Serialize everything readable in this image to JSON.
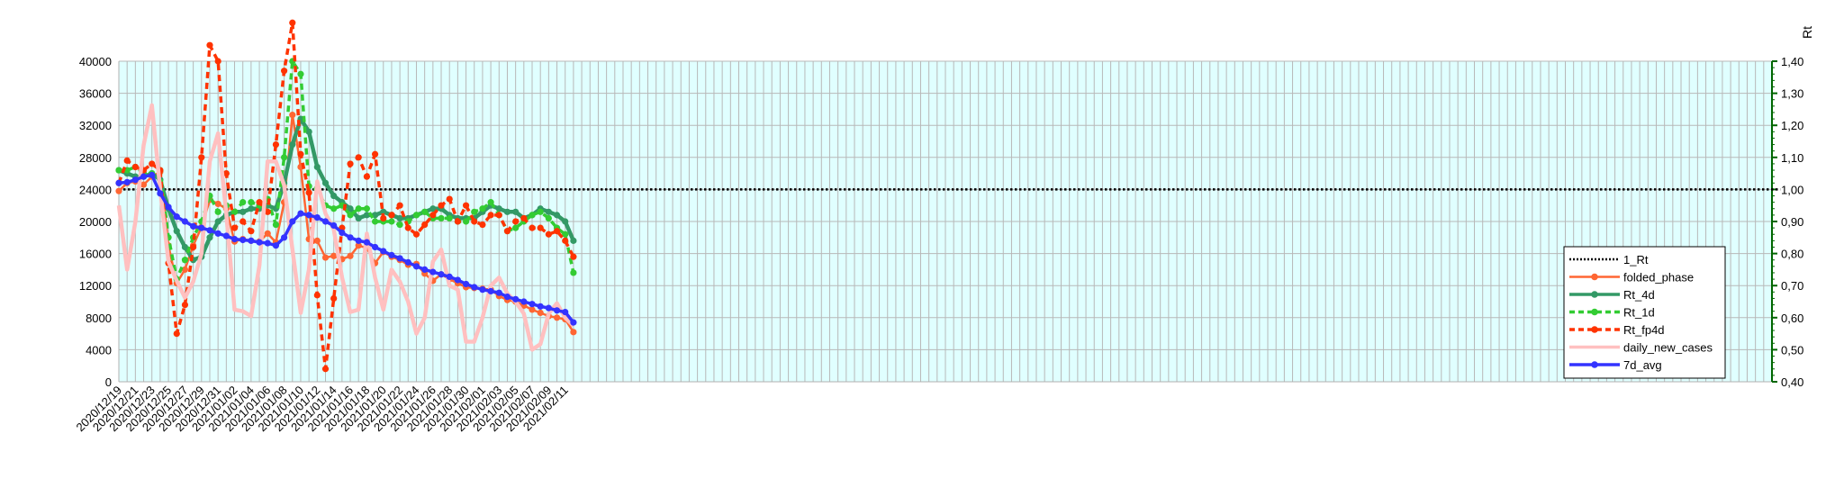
{
  "chart_data": {
    "type": "line",
    "title": "",
    "xlabel": "",
    "ylabel_left": "",
    "ylabel_right": "Rt",
    "ylim_left": [
      0,
      40000
    ],
    "ylim_right": [
      0.4,
      1.4
    ],
    "yticks_left": [
      "0",
      "4000",
      "8000",
      "12000",
      "16000",
      "20000",
      "24000",
      "28000",
      "32000",
      "36000",
      "40000"
    ],
    "yticks_right": [
      "0,40",
      "0,50",
      "0,60",
      "0,70",
      "0,80",
      "0,90",
      "1,00",
      "1,10",
      "1,20",
      "1,30",
      "1,40"
    ],
    "x_start": "2020/12/19",
    "x_days_total": 200,
    "x_tick_labels": [
      "2020/12/19",
      "2020/12/21",
      "2020/12/23",
      "2020/12/25",
      "2020/12/27",
      "2020/12/29",
      "2020/12/31",
      "2021/01/02",
      "2021/01/04",
      "2021/01/06",
      "2021/01/08",
      "2021/01/10",
      "2021/01/12",
      "2021/01/14",
      "2021/01/16",
      "2021/01/18",
      "2021/01/20",
      "2021/01/22",
      "2021/01/24",
      "2021/01/26",
      "2021/01/28",
      "2021/01/30",
      "2021/02/01",
      "2021/02/03",
      "2021/02/05",
      "2021/02/07",
      "2021/02/09",
      "2021/02/11"
    ],
    "grid": true,
    "plot_background": "#e0ffff",
    "legend_position": "right",
    "series": [
      {
        "name": "1_Rt",
        "axis": "right",
        "color": "#000000",
        "style": "dotted",
        "marker": "none",
        "width": 2.5,
        "values": [
          1.0,
          1.0,
          1.0,
          1.0,
          1.0,
          1.0,
          1.0,
          1.0,
          1.0,
          1.0,
          1.0,
          1.0,
          1.0,
          1.0,
          1.0,
          1.0,
          1.0,
          1.0,
          1.0,
          1.0,
          1.0,
          1.0,
          1.0,
          1.0,
          1.0,
          1.0,
          1.0,
          1.0,
          1.0,
          1.0,
          1.0,
          1.0,
          1.0,
          1.0,
          1.0,
          1.0,
          1.0,
          1.0,
          1.0,
          1.0,
          1.0,
          1.0,
          1.0,
          1.0,
          1.0,
          1.0,
          1.0,
          1.0,
          1.0,
          1.0,
          1.0,
          1.0,
          1.0,
          1.0,
          1.0,
          1.0,
          1.0,
          1.0,
          1.0,
          1.0,
          1.0,
          1.0,
          1.0,
          1.0,
          1.0,
          1.0,
          1.0,
          1.0,
          1.0,
          1.0,
          1.0,
          1.0,
          1.0,
          1.0,
          1.0,
          1.0,
          1.0,
          1.0,
          1.0,
          1.0,
          1.0,
          1.0,
          1.0,
          1.0,
          1.0,
          1.0,
          1.0,
          1.0,
          1.0,
          1.0,
          1.0,
          1.0,
          1.0,
          1.0,
          1.0,
          1.0,
          1.0,
          1.0,
          1.0,
          1.0,
          1.0,
          1.0,
          1.0,
          1.0,
          1.0,
          1.0,
          1.0,
          1.0,
          1.0,
          1.0,
          1.0,
          1.0,
          1.0,
          1.0,
          1.0,
          1.0,
          1.0,
          1.0,
          1.0,
          1.0,
          1.0,
          1.0,
          1.0,
          1.0,
          1.0,
          1.0,
          1.0,
          1.0,
          1.0,
          1.0,
          1.0,
          1.0,
          1.0,
          1.0,
          1.0,
          1.0,
          1.0,
          1.0,
          1.0,
          1.0,
          1.0,
          1.0,
          1.0,
          1.0,
          1.0,
          1.0,
          1.0,
          1.0,
          1.0,
          1.0,
          1.0,
          1.0,
          1.0,
          1.0,
          1.0,
          1.0,
          1.0,
          1.0,
          1.0,
          1.0,
          1.0,
          1.0,
          1.0,
          1.0,
          1.0,
          1.0,
          1.0,
          1.0,
          1.0,
          1.0,
          1.0,
          1.0,
          1.0,
          1.0,
          1.0,
          1.0,
          1.0,
          1.0,
          1.0,
          1.0,
          1.0,
          1.0,
          1.0,
          1.0,
          1.0,
          1.0,
          1.0,
          1.0,
          1.0,
          1.0,
          1.0,
          1.0,
          1.0,
          1.0,
          1.0,
          1.0,
          1.0,
          1.0,
          1.0,
          1.0,
          1.0,
          1.0
        ]
      },
      {
        "name": "folded_phase",
        "axis": "left",
        "color": "#ff6633",
        "style": "solid",
        "marker": "circle",
        "width": 2.5,
        "values": [
          23800,
          24800,
          25000,
          24600,
          25600,
          26200,
          17000,
          12300,
          14000,
          17000,
          19300,
          22700,
          22200,
          21600,
          17500,
          17800,
          17600,
          17500,
          18500,
          17400,
          22400,
          33300,
          26800,
          17800,
          17600,
          15500,
          15700,
          15300,
          15700,
          17000,
          16700,
          14800,
          16200,
          15600,
          15200,
          14600,
          14700,
          13500,
          12600,
          13400,
          12800,
          12300,
          11800,
          11700,
          11600,
          11500,
          10700,
          10200,
          10000,
          9500,
          9000,
          8600,
          8200,
          8000,
          7800,
          6200
        ]
      },
      {
        "name": "Rt_4d",
        "axis": "right",
        "color": "#339966",
        "style": "solid",
        "marker": "circle",
        "width": 4.5,
        "values": [
          1.06,
          1.05,
          1.04,
          1.04,
          1.05,
          1.03,
          0.94,
          0.87,
          0.82,
          0.78,
          0.79,
          0.85,
          0.9,
          0.92,
          0.93,
          0.93,
          0.94,
          0.94,
          0.95,
          0.94,
          1.02,
          1.14,
          1.22,
          1.18,
          1.07,
          1.02,
          0.98,
          0.96,
          0.94,
          0.91,
          0.92,
          0.92,
          0.93,
          0.92,
          0.91,
          0.91,
          0.92,
          0.93,
          0.94,
          0.94,
          0.92,
          0.91,
          0.91,
          0.91,
          0.93,
          0.95,
          0.94,
          0.93,
          0.93,
          0.91,
          0.92,
          0.94,
          0.93,
          0.92,
          0.9,
          0.84
        ]
      },
      {
        "name": "Rt_1d",
        "axis": "right",
        "color": "#33cc33",
        "style": "dashed",
        "marker": "circle",
        "width": 3.5,
        "values": [
          1.06,
          1.06,
          1.07,
          1.05,
          1.05,
          1.06,
          0.85,
          0.72,
          0.78,
          0.85,
          0.9,
          0.98,
          0.93,
          0.95,
          0.93,
          0.96,
          0.96,
          0.95,
          0.97,
          0.89,
          1.1,
          1.4,
          1.36,
          1.01,
          1.0,
          0.95,
          0.94,
          0.95,
          0.92,
          0.94,
          0.94,
          0.9,
          0.9,
          0.9,
          0.89,
          0.9,
          0.92,
          0.93,
          0.91,
          0.91,
          0.91,
          0.9,
          0.9,
          0.93,
          0.94,
          0.96,
          0.92,
          0.87,
          0.88,
          0.9,
          0.92,
          0.93,
          0.91,
          0.88,
          0.86,
          0.74
        ]
      },
      {
        "name": "Rt_fp4d",
        "axis": "right",
        "color": "#ff3300",
        "style": "dashed",
        "marker": "circle",
        "width": 3.5,
        "values": [
          1.02,
          1.09,
          1.07,
          1.06,
          1.08,
          1.06,
          0.77,
          0.55,
          0.64,
          0.82,
          1.1,
          1.45,
          1.4,
          1.05,
          0.88,
          0.9,
          0.87,
          0.96,
          0.93,
          1.14,
          1.37,
          1.52,
          1.11,
          0.99,
          0.67,
          0.44,
          0.66,
          0.88,
          1.08,
          1.1,
          1.04,
          1.11,
          0.91,
          0.92,
          0.95,
          0.88,
          0.86,
          0.89,
          0.92,
          0.95,
          0.97,
          0.9,
          0.95,
          0.9,
          0.89,
          0.92,
          0.92,
          0.87,
          0.9,
          0.91,
          0.88,
          0.88,
          0.86,
          0.87,
          0.84,
          0.79
        ]
      },
      {
        "name": "daily_new_cases",
        "axis": "left",
        "color": "#ffc0c0",
        "style": "solid",
        "marker": "none",
        "width": 4.5,
        "values": [
          22000,
          14000,
          20000,
          29500,
          34500,
          24000,
          15000,
          12600,
          10500,
          12500,
          16000,
          27500,
          31000,
          21000,
          9000,
          8800,
          8200,
          14500,
          27500,
          27500,
          24500,
          16500,
          8600,
          14000,
          25000,
          21000,
          19000,
          13000,
          8700,
          9000,
          18500,
          13000,
          9000,
          14000,
          12500,
          10000,
          6000,
          8000,
          15000,
          16500,
          12000,
          11500,
          5000,
          5000,
          8000,
          12000,
          13000,
          11000,
          10000,
          8500,
          4000,
          4700,
          8500,
          9800,
          8000,
          7000
        ]
      },
      {
        "name": "7d_avg",
        "axis": "left",
        "color": "#3333ff",
        "style": "solid",
        "marker": "circle",
        "width": 3.5,
        "values": [
          24800,
          24900,
          25200,
          25600,
          25800,
          23500,
          21800,
          20600,
          20000,
          19400,
          19200,
          18900,
          18500,
          18200,
          17800,
          17700,
          17600,
          17400,
          17300,
          17000,
          18000,
          20000,
          21000,
          20800,
          20500,
          20000,
          19500,
          18600,
          18000,
          17600,
          17400,
          16800,
          16300,
          15800,
          15400,
          14900,
          14400,
          14000,
          13700,
          13400,
          13100,
          12700,
          12200,
          11800,
          11500,
          11300,
          11100,
          10600,
          10300,
          10000,
          9700,
          9400,
          9200,
          8900,
          8700,
          7400
        ]
      }
    ]
  }
}
